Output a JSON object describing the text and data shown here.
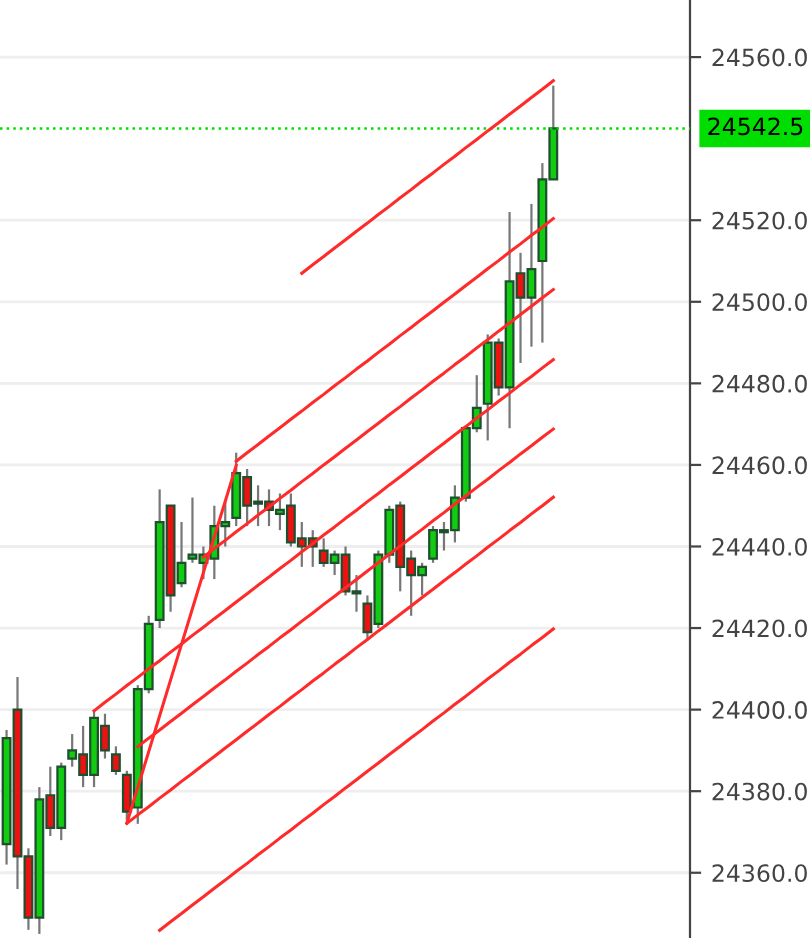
{
  "chart_data": {
    "type": "candlestick",
    "categories": [
      null,
      null,
      null,
      null,
      null,
      null,
      null,
      null,
      null,
      null,
      null,
      null,
      null,
      null,
      null,
      null,
      null,
      null,
      null,
      null,
      null,
      null,
      null,
      null,
      null,
      null,
      null,
      null,
      null,
      null,
      null,
      null,
      null,
      null,
      null,
      null,
      null,
      null,
      null,
      null,
      null,
      null,
      null,
      null,
      null,
      null,
      null,
      null,
      null,
      null,
      null
    ],
    "ohlc": [
      [
        24367,
        24395,
        24362,
        24393
      ],
      [
        24400,
        24408,
        24356,
        24364
      ],
      [
        24364,
        24366,
        24346,
        24349
      ],
      [
        24349,
        24381,
        24345,
        24378
      ],
      [
        24379,
        24386,
        24369,
        24371
      ],
      [
        24371,
        24387,
        24368,
        24386
      ],
      [
        24388,
        24394,
        24386,
        24390
      ],
      [
        24389,
        24396,
        24381,
        24384
      ],
      [
        24384,
        24400,
        24381,
        24398
      ],
      [
        24396,
        24399,
        24388,
        24390
      ],
      [
        24389,
        24391,
        24384,
        24385
      ],
      [
        24384,
        24385,
        24373,
        24375
      ],
      [
        24376,
        24406,
        24372,
        24405
      ],
      [
        24405,
        24423,
        24404,
        24421
      ],
      [
        24422,
        24454,
        24420,
        24446
      ],
      [
        24450,
        24450,
        24424,
        24428
      ],
      [
        24431,
        24446,
        24430,
        24436
      ],
      [
        24437,
        24452,
        24436,
        24438
      ],
      [
        24436,
        24440,
        24432,
        24438
      ],
      [
        24437,
        24450,
        24432,
        24445
      ],
      [
        24445,
        24451,
        24440,
        24446
      ],
      [
        24447,
        24463,
        24445,
        24458
      ],
      [
        24457,
        24459,
        24445,
        24450
      ],
      [
        24450.5,
        24455,
        24445,
        24451
      ],
      [
        24451,
        24454,
        24445,
        24449
      ],
      [
        24448,
        24453,
        24444,
        24449
      ],
      [
        24450,
        24453,
        24440,
        24441
      ],
      [
        24442,
        24446,
        24435,
        24440
      ],
      [
        24442,
        24444,
        24435,
        24440
      ],
      [
        24439,
        24442,
        24435,
        24436
      ],
      [
        24436,
        24439,
        24433,
        24438
      ],
      [
        24438,
        24440,
        24428,
        24429
      ],
      [
        24428.5,
        24433,
        24424,
        24429
      ],
      [
        24426,
        24428,
        24417,
        24419
      ],
      [
        24421,
        24439,
        24420,
        24438
      ],
      [
        24438,
        24450,
        24436,
        24449
      ],
      [
        24450,
        24451,
        24429,
        24435
      ],
      [
        24437,
        24439,
        24423,
        24433
      ],
      [
        24433,
        24436,
        24428,
        24435
      ],
      [
        24437,
        24445,
        24436,
        24444
      ],
      [
        24443.5,
        24446,
        24439,
        24444
      ],
      [
        24444,
        24455,
        24441,
        24452
      ],
      [
        24452,
        24469,
        24451,
        24469
      ],
      [
        24469,
        24482,
        24468,
        24474
      ],
      [
        24475,
        24492,
        24466,
        24490
      ],
      [
        24490,
        24491,
        24477,
        24479
      ],
      [
        24479,
        24522,
        24469,
        24505
      ],
      [
        24507,
        24512,
        24485,
        24501
      ],
      [
        24501,
        24524,
        24489,
        24508
      ],
      [
        24510,
        24534,
        24490,
        24530
      ],
      [
        24530,
        24553,
        24530,
        24542.5
      ]
    ],
    "colors": [
      "#11cc11",
      "#ee1111",
      "#ee1111",
      "#11cc11",
      "#ee1111",
      "#11cc11",
      "#11cc11",
      "#ee1111",
      "#11cc11",
      "#ee1111",
      "#ee1111",
      "#ee1111",
      "#11cc11",
      "#11cc11",
      "#11cc11",
      "#ee1111",
      "#11cc11",
      "#11cc11",
      "#11cc11",
      "#11cc11",
      "#11cc11",
      "#11cc11",
      "#ee1111",
      "#11cc11",
      "#ee1111",
      "#11cc11",
      "#ee1111",
      "#ee1111",
      "#ee1111",
      "#ee1111",
      "#11cc11",
      "#ee1111",
      "#11cc11",
      "#ee1111",
      "#11cc11",
      "#11cc11",
      "#ee1111",
      "#ee1111",
      "#11cc11",
      "#11cc11",
      "#11cc11",
      "#11cc11",
      "#11cc11",
      "#11cc11",
      "#11cc11",
      "#ee1111",
      "#11cc11",
      "#ee1111",
      "#11cc11",
      "#11cc11",
      "#11cc11"
    ],
    "series": [
      {
        "type": "line",
        "color": "#ff2a2a",
        "values": [
          null,
          null,
          null,
          null,
          null,
          null,
          null,
          null,
          null,
          null,
          null,
          24372.2,
          24380.9,
          24389.7,
          24398.5,
          24407.3,
          24416.0,
          24424.8,
          24433.6,
          24442.4,
          24451.1,
          24459.9,
          null,
          null,
          null,
          null,
          null,
          null,
          null,
          null,
          null,
          null,
          null,
          null,
          null,
          null,
          null,
          null,
          null,
          null,
          null,
          null,
          null,
          null,
          null,
          null,
          null,
          null,
          null,
          null,
          null
        ]
      },
      {
        "type": "line",
        "color": "#ff2a2a",
        "values": [
          null,
          null,
          null,
          null,
          null,
          null,
          null,
          null,
          null,
          null,
          null,
          null,
          null,
          null,
          null,
          null,
          null,
          null,
          null,
          null,
          null,
          null,
          null,
          null,
          null,
          null,
          null,
          24507.0,
          24509.1,
          24511.1,
          24513.2,
          24515.2,
          24517.3,
          24519.3,
          24521.4,
          24523.4,
          24525.5,
          24527.5,
          24529.6,
          24531.6,
          24533.7,
          24535.7,
          24537.8,
          24539.8,
          24541.9,
          24543.9,
          24546.0,
          24548.0,
          24550.1,
          24552.1,
          24554.2
        ]
      },
      {
        "type": "line",
        "color": "#ff2a2a",
        "values": [
          null,
          null,
          null,
          null,
          null,
          null,
          null,
          null,
          null,
          null,
          null,
          null,
          null,
          null,
          null,
          null,
          null,
          null,
          null,
          null,
          null,
          24460.9,
          24463.0,
          24465.0,
          24467.1,
          24469.1,
          24471.2,
          24473.2,
          24475.3,
          24477.3,
          24479.4,
          24481.4,
          24483.5,
          24485.5,
          24487.6,
          24489.6,
          24491.7,
          24493.7,
          24495.8,
          24497.8,
          24499.9,
          24501.9,
          24504.0,
          24506.0,
          24508.1,
          24510.1,
          24512.2,
          24514.2,
          24516.3,
          24518.3,
          24520.4
        ]
      },
      {
        "type": "line",
        "color": "#ff2a2a",
        "values": [
          null,
          null,
          null,
          null,
          null,
          null,
          null,
          null,
          null,
          null,
          null,
          null,
          null,
          null,
          null,
          null,
          null,
          null,
          24437.4,
          24439.5,
          24441.5,
          24443.6,
          24445.6,
          24447.7,
          24449.7,
          24451.8,
          24453.8,
          24455.9,
          24457.9,
          24460.0,
          24462.0,
          24464.1,
          24466.1,
          24468.2,
          24470.2,
          24472.3,
          24474.3,
          24476.4,
          24478.4,
          24480.5,
          24482.5,
          24484.6,
          24486.6,
          24488.7,
          24490.7,
          24492.8,
          24494.8,
          24496.9,
          24498.9,
          24501.0,
          24503.0
        ]
      },
      {
        "type": "line",
        "color": "#ff2a2a",
        "values": [
          null,
          null,
          null,
          null,
          null,
          null,
          null,
          null,
          24399.7,
          24401.8,
          24403.8,
          24405.9,
          24407.9,
          24410.0,
          24412.0,
          24414.1,
          24416.1,
          24418.2,
          24420.2,
          24422.3,
          24424.3,
          24426.4,
          24428.4,
          24430.5,
          24432.5,
          24434.6,
          24436.6,
          24438.7,
          24440.7,
          24442.8,
          24444.8,
          24446.9,
          24448.9,
          24451.0,
          24453.0,
          24455.1,
          24457.1,
          24459.2,
          24461.2,
          24463.3,
          24465.3,
          24467.4,
          24469.4,
          24471.5,
          24473.5,
          24475.6,
          24477.6,
          24479.7,
          24481.7,
          24483.8,
          24485.8
        ]
      },
      {
        "type": "line",
        "color": "#ff2a2a",
        "values": [
          null,
          null,
          null,
          null,
          null,
          null,
          null,
          null,
          null,
          null,
          null,
          null,
          24390.9,
          24393.0,
          24395.0,
          24397.1,
          24399.1,
          24401.2,
          24403.2,
          24405.3,
          24407.3,
          24409.4,
          24411.4,
          24413.5,
          24415.5,
          24417.6,
          24419.6,
          24421.7,
          24423.7,
          24425.8,
          24427.8,
          24429.9,
          24431.9,
          24434.0,
          24436.0,
          24438.1,
          24440.1,
          24442.2,
          24444.2,
          24446.3,
          24448.3,
          24450.4,
          24452.4,
          24454.5,
          24456.5,
          24458.6,
          24460.6,
          24462.7,
          24464.7,
          24466.8,
          24468.8
        ]
      },
      {
        "type": "line",
        "color": "#ff2a2a",
        "values": [
          null,
          null,
          null,
          null,
          null,
          null,
          null,
          null,
          null,
          null,
          null,
          24372.1,
          24374.2,
          24376.2,
          24378.3,
          24380.3,
          24382.4,
          24384.4,
          24386.5,
          24388.5,
          24390.6,
          24392.6,
          24394.7,
          24396.7,
          24398.8,
          24400.8,
          24402.9,
          24404.9,
          24407.0,
          24409.0,
          24411.1,
          24413.1,
          24415.2,
          24417.2,
          24419.3,
          24421.3,
          24423.4,
          24425.4,
          24427.5,
          24429.5,
          24431.6,
          24433.6,
          24435.7,
          24437.7,
          24439.8,
          24441.8,
          24443.9,
          24445.9,
          24448.0,
          24450.0,
          24452.1
        ]
      },
      {
        "type": "line",
        "color": "#ff2a2a",
        "values": [
          null,
          null,
          null,
          null,
          null,
          null,
          null,
          null,
          null,
          null,
          null,
          null,
          null,
          null,
          24345.9,
          24348.0,
          24350.0,
          24352.1,
          24354.1,
          24356.2,
          24358.2,
          24360.3,
          24362.3,
          24364.4,
          24366.4,
          24368.5,
          24370.5,
          24372.6,
          24374.6,
          24376.7,
          24378.7,
          24380.8,
          24382.8,
          24384.9,
          24386.9,
          24389.0,
          24391.0,
          24393.1,
          24395.1,
          24397.2,
          24399.2,
          24401.3,
          24403.3,
          24405.4,
          24407.5,
          24409.5,
          24411.6,
          24413.6,
          24415.7,
          24417.7,
          24419.8
        ]
      }
    ],
    "ylim": [
      24344,
      24574
    ],
    "yticks": [
      {
        "value": 24360,
        "label": "24360.0"
      },
      {
        "value": 24380,
        "label": "24380.0"
      },
      {
        "value": 24400,
        "label": "24400.0"
      },
      {
        "value": 24420,
        "label": "24420.0"
      },
      {
        "value": 24440,
        "label": "24440.0"
      },
      {
        "value": 24460,
        "label": "24460.0"
      },
      {
        "value": 24480,
        "label": "24480.0"
      },
      {
        "value": 24500,
        "label": "24500.0"
      },
      {
        "value": 24520,
        "label": "24520.0"
      },
      {
        "value": 24560,
        "label": "24560.0"
      }
    ],
    "ref_lines": [
      {
        "axis": "y",
        "value": 24542.5,
        "label": "24542.5",
        "color": "#00dd00",
        "line_style": "dotted"
      }
    ],
    "grid": "y",
    "tick_labels": "y"
  }
}
